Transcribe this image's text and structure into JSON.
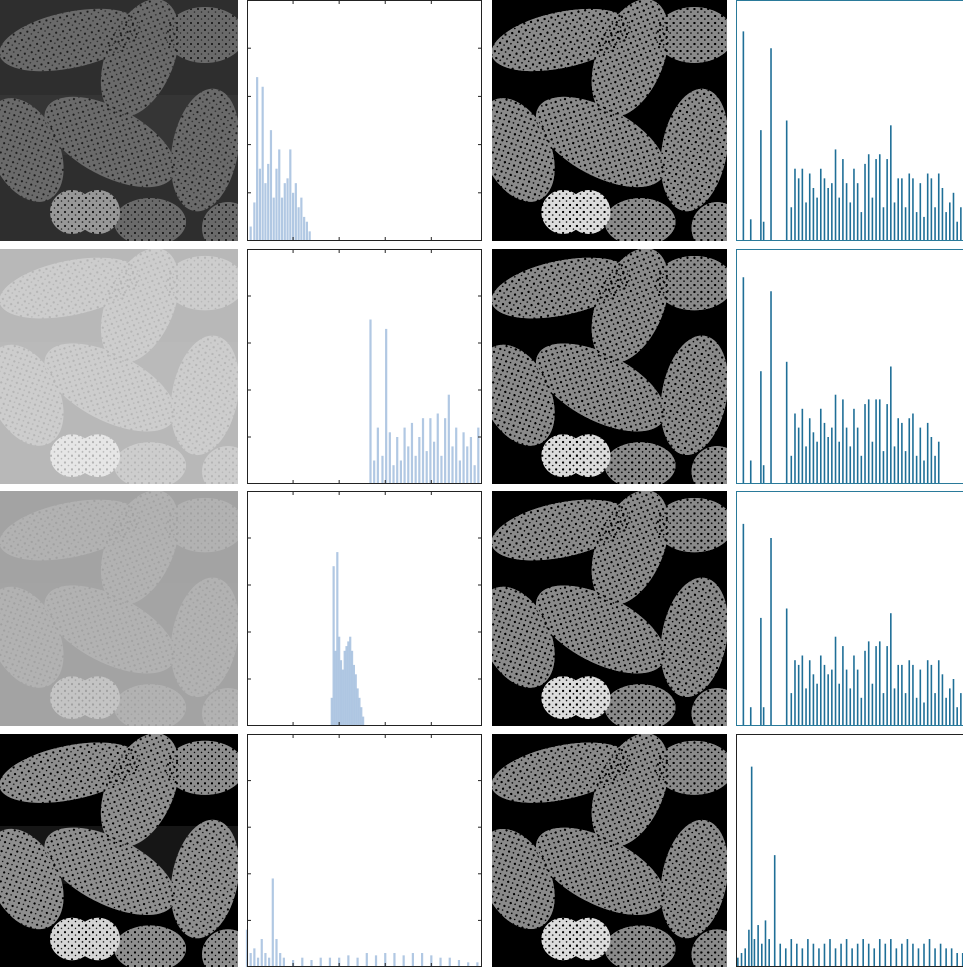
{
  "chart_data": [
    {
      "type": "bar",
      "color": "#a9c2e0",
      "xlim": [
        0,
        255
      ],
      "ylim": [
        0,
        5
      ],
      "xticks": [
        50,
        100,
        150,
        200
      ],
      "yticks": [
        1,
        2,
        3,
        4
      ],
      "x": [
        4,
        8,
        11,
        14,
        17,
        20,
        23,
        26,
        29,
        32,
        35,
        38,
        41,
        44,
        47,
        50,
        53,
        56,
        59,
        62,
        65,
        68
      ],
      "values": [
        0.3,
        0.8,
        3.4,
        1.5,
        3.2,
        1.2,
        1.6,
        2.3,
        0.9,
        1.5,
        1.9,
        0.9,
        1.2,
        1.3,
        1.9,
        1.0,
        1.2,
        0.7,
        0.9,
        0.5,
        0.4,
        0.2
      ]
    },
    {
      "type": "stem",
      "color": "#1f6f97",
      "xlim": [
        0,
        255
      ],
      "ylim": [
        0,
        5
      ],
      "x": [
        8,
        16,
        27,
        30,
        38,
        55,
        60,
        64,
        68,
        72,
        76,
        80,
        84,
        88,
        92,
        96,
        100,
        104,
        108,
        112,
        116,
        120,
        124,
        128,
        132,
        136,
        140,
        144,
        148,
        152,
        156,
        160,
        164,
        168,
        172,
        176,
        180,
        184,
        188,
        192,
        196,
        200,
        204,
        208,
        212,
        216,
        220,
        224,
        228,
        232,
        236,
        240,
        244,
        248
      ],
      "values": [
        4.35,
        0.45,
        2.3,
        0.4,
        4.0,
        2.5,
        0.7,
        1.5,
        1.3,
        1.5,
        0.8,
        1.4,
        1.1,
        0.9,
        1.5,
        1.3,
        1.1,
        1.2,
        1.9,
        0.9,
        1.7,
        1.2,
        0.8,
        1.5,
        1.2,
        0.6,
        1.6,
        1.8,
        0.9,
        1.7,
        1.8,
        0.7,
        1.7,
        2.4,
        0.8,
        1.3,
        1.3,
        0.7,
        1.4,
        1.3,
        0.6,
        1.2,
        0.5,
        1.4,
        1.3,
        0.7,
        1.4,
        1.1,
        0.6,
        0.8,
        1.0,
        0.4,
        0.7,
        0.3
      ]
    },
    {
      "type": "bar",
      "color": "#a9c2e0",
      "xlim": [
        0,
        255
      ],
      "ylim": [
        0,
        5
      ],
      "xticks": [
        50,
        100,
        150,
        200
      ],
      "yticks": [
        1,
        2,
        3,
        4
      ],
      "x": [
        134,
        138,
        142,
        147,
        151,
        155,
        159,
        163,
        167,
        171,
        175,
        179,
        183,
        187,
        191,
        195,
        199,
        203,
        207,
        211,
        215,
        219,
        223,
        227,
        231,
        235,
        239,
        243,
        247,
        251
      ],
      "values": [
        3.5,
        0.5,
        1.2,
        0.6,
        3.3,
        1.1,
        0.4,
        1.0,
        0.5,
        1.2,
        0.8,
        1.3,
        0.6,
        1.0,
        1.4,
        0.7,
        1.4,
        0.9,
        1.5,
        0.6,
        1.4,
        1.9,
        0.8,
        1.2,
        0.5,
        1.1,
        0.8,
        1.0,
        0.4,
        1.2
      ]
    },
    {
      "type": "stem",
      "color": "#1f6f97",
      "xlim": [
        0,
        255
      ],
      "ylim": [
        0,
        5
      ],
      "x": [
        8,
        16,
        27,
        30,
        38,
        55,
        60,
        64,
        68,
        72,
        76,
        80,
        84,
        88,
        92,
        96,
        100,
        104,
        108,
        112,
        116,
        120,
        124,
        128,
        132,
        136,
        140,
        144,
        148,
        152,
        156,
        160,
        164,
        168,
        172,
        176,
        180,
        184,
        188,
        192,
        196,
        200,
        204,
        208,
        212,
        216,
        220
      ],
      "values": [
        4.4,
        0.5,
        2.4,
        0.4,
        4.1,
        2.6,
        0.6,
        1.5,
        1.2,
        1.6,
        0.8,
        1.4,
        1.1,
        0.9,
        1.6,
        1.3,
        1.0,
        1.2,
        1.9,
        0.9,
        1.8,
        1.2,
        0.8,
        1.6,
        1.2,
        0.6,
        1.7,
        1.8,
        0.9,
        1.8,
        1.8,
        0.7,
        1.7,
        2.5,
        0.8,
        1.4,
        1.3,
        0.7,
        1.4,
        1.5,
        0.6,
        1.2,
        0.5,
        1.3,
        1.0,
        0.6,
        0.9
      ]
    },
    {
      "type": "bar",
      "color": "#a9c2e0",
      "xlim": [
        0,
        255
      ],
      "ylim": [
        0,
        5
      ],
      "xticks": [
        50,
        100,
        150,
        200
      ],
      "yticks": [
        1,
        2,
        3,
        4
      ],
      "x": [
        92,
        94,
        96,
        98,
        100,
        102,
        104,
        106,
        108,
        110,
        112,
        114,
        116,
        118,
        120,
        122,
        124,
        126
      ],
      "values": [
        0.6,
        3.4,
        1.6,
        3.7,
        1.9,
        1.4,
        1.2,
        1.6,
        1.7,
        1.8,
        1.9,
        1.6,
        1.3,
        1.1,
        0.8,
        0.6,
        0.4,
        0.2
      ]
    },
    {
      "type": "stem",
      "color": "#1f6f97",
      "xlim": [
        0,
        255
      ],
      "ylim": [
        0,
        5
      ],
      "x": [
        8,
        16,
        27,
        30,
        38,
        55,
        60,
        64,
        68,
        72,
        76,
        80,
        84,
        88,
        92,
        96,
        100,
        104,
        108,
        112,
        116,
        120,
        124,
        128,
        132,
        136,
        140,
        144,
        148,
        152,
        156,
        160,
        164,
        168,
        172,
        176,
        180,
        184,
        188,
        192,
        196,
        200,
        204,
        208,
        212,
        216,
        220,
        224,
        228,
        232,
        236,
        240,
        244,
        248
      ],
      "values": [
        4.3,
        0.4,
        2.3,
        0.4,
        4.0,
        2.5,
        0.7,
        1.4,
        1.3,
        1.5,
        0.8,
        1.4,
        1.1,
        0.9,
        1.5,
        1.3,
        1.1,
        1.2,
        1.9,
        0.9,
        1.7,
        1.2,
        0.8,
        1.5,
        1.2,
        0.6,
        1.6,
        1.8,
        0.9,
        1.7,
        1.8,
        0.7,
        1.7,
        2.4,
        0.8,
        1.3,
        1.3,
        0.7,
        1.4,
        1.3,
        0.6,
        1.2,
        0.5,
        1.4,
        1.3,
        0.7,
        1.4,
        1.1,
        0.6,
        0.8,
        1.0,
        0.4,
        0.7,
        0.3
      ]
    },
    {
      "type": "bar",
      "color": "#a9c2e0",
      "xlim": [
        0,
        255
      ],
      "ylim": [
        0,
        5
      ],
      "xticks": [
        50,
        100,
        150,
        200
      ],
      "yticks": [
        1,
        2,
        3,
        4
      ],
      "x": [
        0,
        4,
        8,
        12,
        16,
        20,
        24,
        28,
        32,
        36,
        40,
        50,
        60,
        70,
        80,
        90,
        100,
        110,
        120,
        130,
        140,
        150,
        160,
        170,
        180,
        190,
        200,
        210,
        220,
        230,
        240,
        250
      ],
      "values": [
        0.8,
        0.3,
        0.4,
        0.2,
        0.6,
        0.3,
        0.2,
        1.9,
        0.6,
        0.3,
        0.2,
        0.15,
        0.2,
        0.15,
        0.2,
        0.2,
        0.2,
        0.25,
        0.2,
        0.3,
        0.25,
        0.3,
        0.3,
        0.25,
        0.3,
        0.3,
        0.25,
        0.2,
        0.2,
        0.15,
        0.1,
        0.1
      ]
    },
    {
      "type": "stem",
      "color": "#1f6f97",
      "xlim": [
        0,
        255
      ],
      "ylim": [
        0,
        5
      ],
      "x": [
        2,
        6,
        10,
        14,
        17,
        20,
        24,
        28,
        32,
        36,
        42,
        48,
        54,
        60,
        66,
        72,
        78,
        84,
        90,
        96,
        102,
        108,
        114,
        120,
        126,
        132,
        138,
        144,
        150,
        156,
        162,
        168,
        174,
        180,
        186,
        192,
        198,
        204,
        210,
        216,
        222,
        228,
        234,
        240,
        246,
        252
      ],
      "values": [
        0.2,
        0.3,
        0.4,
        0.8,
        4.3,
        0.6,
        0.9,
        0.5,
        1.0,
        0.6,
        2.4,
        0.5,
        0.4,
        0.6,
        0.5,
        0.4,
        0.6,
        0.5,
        0.4,
        0.5,
        0.6,
        0.4,
        0.5,
        0.6,
        0.4,
        0.5,
        0.6,
        0.5,
        0.4,
        0.6,
        0.5,
        0.6,
        0.4,
        0.5,
        0.6,
        0.5,
        0.4,
        0.5,
        0.6,
        0.4,
        0.5,
        0.4,
        0.4,
        0.3,
        0.3,
        0.2
      ]
    }
  ]
}
